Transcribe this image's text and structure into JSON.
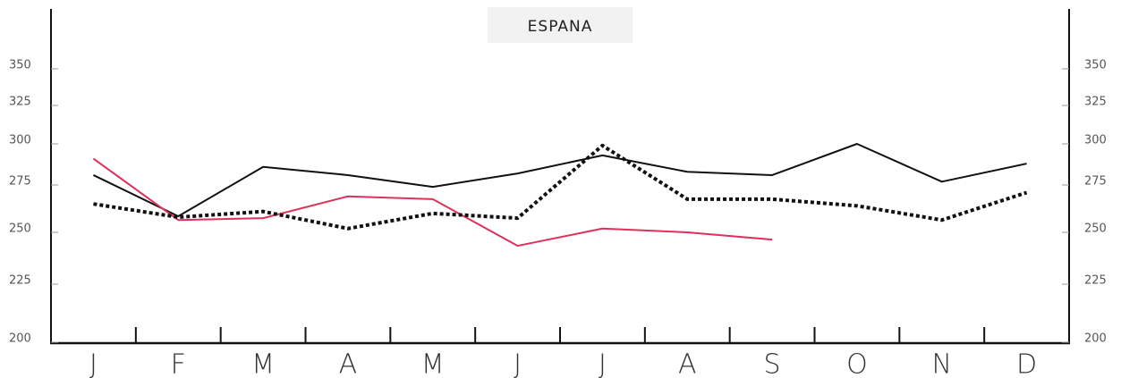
{
  "chart_data": {
    "type": "line",
    "title": "ESPANA",
    "categories": [
      "J",
      "F",
      "M",
      "A",
      "M",
      "J",
      "J",
      "A",
      "S",
      "O",
      "N",
      "D"
    ],
    "series": [
      {
        "color": "#111111",
        "style": "solid",
        "values": [
          281,
          258.5,
          286,
          281,
          274,
          282,
          293,
          283,
          281,
          300,
          277,
          288
        ]
      },
      {
        "color": "#e0305a",
        "style": "solid",
        "values": [
          291,
          256.5,
          257.5,
          269,
          267.5,
          243.5,
          252,
          250,
          246.5,
          null,
          null,
          null
        ]
      },
      {
        "color": "#111111",
        "style": "dotted",
        "values": [
          265,
          258,
          261,
          252,
          260,
          257.5,
          299,
          267.5,
          267.5,
          264,
          256.5,
          271
        ]
      }
    ],
    "ylim": [
      200,
      350
    ],
    "yticks": [
      200,
      225,
      250,
      275,
      300,
      325,
      350
    ],
    "grid": false
  }
}
